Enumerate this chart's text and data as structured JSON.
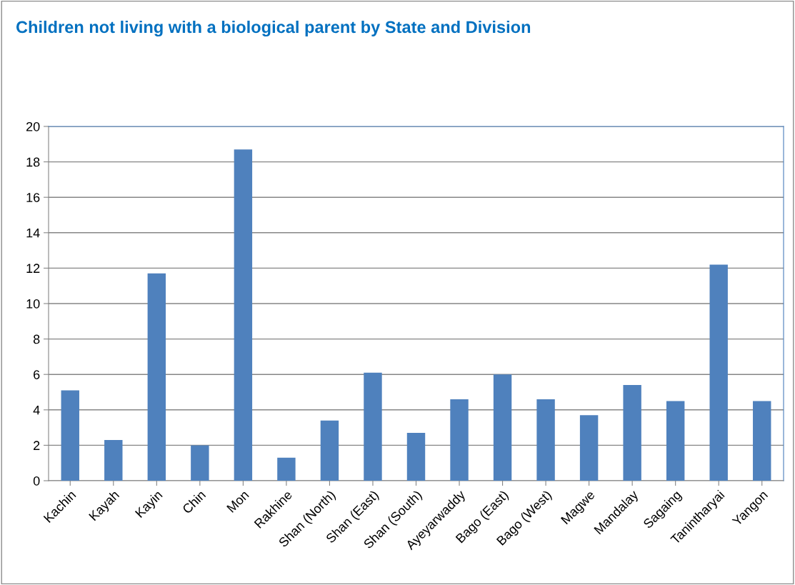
{
  "chart_data": {
    "type": "bar",
    "title": "Children not living with a biological parent by State and Division",
    "categories": [
      "Kachin",
      "Kayah",
      "Kayin",
      "Chin",
      "Mon",
      "Rakhine",
      "Shan (North)",
      "Shan (East)",
      "Shan (South)",
      "Ayeyarwaddy",
      "Bago (East)",
      "Bago (West)",
      "Magwe",
      "Mandalay",
      "Sagaing",
      "Tanintharyai",
      "Yangon"
    ],
    "values": [
      5.1,
      2.3,
      11.7,
      2.0,
      18.7,
      1.3,
      3.4,
      6.1,
      2.7,
      4.6,
      6.0,
      4.6,
      3.7,
      5.4,
      4.5,
      12.2,
      4.5
    ],
    "color": "#4f81bd",
    "ylim": [
      0,
      20
    ],
    "yticks": [
      0,
      2,
      4,
      6,
      8,
      10,
      12,
      14,
      16,
      18,
      20
    ],
    "grid": "y",
    "legend": false
  }
}
